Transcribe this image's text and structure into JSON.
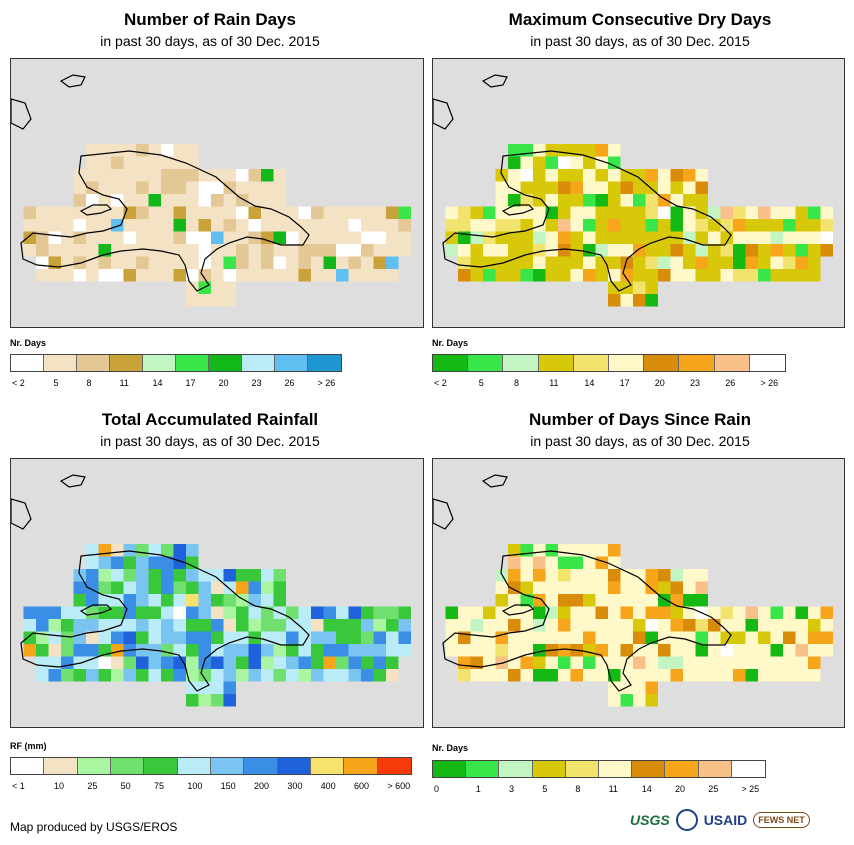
{
  "panels": {
    "rain_days": {
      "title": "Number of Rain Days",
      "subtitle": "in past 30 days, as of 30 Dec. 2015",
      "legend_title": "Nr. Days",
      "legend_colors": [
        "#ffffff",
        "#f3e2c4",
        "#e3c795",
        "#c9a23a",
        "#c3f5c3",
        "#39e64a",
        "#12b81a",
        "#b9ecf7",
        "#60bff0",
        "#1d96d2"
      ],
      "legend_labels": [
        "< 2",
        "5",
        "8",
        "11",
        "14",
        "17",
        "20",
        "23",
        "26",
        "> 26"
      ]
    },
    "dry_days": {
      "title": "Maximum Consecutive Dry Days",
      "subtitle": "in past 30 days, as of 30 Dec. 2015",
      "legend_title": "Nr. Days",
      "legend_colors": [
        "#14b914",
        "#39e64a",
        "#c3f5c3",
        "#d8c80a",
        "#f2e26e",
        "#fff8c8",
        "#d98b0a",
        "#f7a51b",
        "#f9c08a",
        "#ffffff"
      ],
      "legend_labels": [
        "< 2",
        "5",
        "8",
        "11",
        "14",
        "17",
        "20",
        "23",
        "26",
        "> 26"
      ]
    },
    "rainfall": {
      "title": "Total Accumulated Rainfall",
      "subtitle": "in past 30 days, as of 30 Dec. 2015",
      "legend_title": "RF (mm)",
      "legend_colors": [
        "#ffffff",
        "#f3e2c4",
        "#aaf5a0",
        "#6fe070",
        "#39c83c",
        "#b9ecf7",
        "#7ac4f2",
        "#3a8ee6",
        "#1f62dc",
        "#f7e26e",
        "#f7a51b",
        "#f73a0a"
      ],
      "legend_labels": [
        "< 1",
        "10",
        "25",
        "50",
        "75",
        "100",
        "150",
        "200",
        "300",
        "400",
        "600",
        "> 600"
      ]
    },
    "since_rain": {
      "title": "Number of Days Since Rain",
      "subtitle": "in past 30 days, as of 30 Dec. 2015",
      "legend_title": "Nr. Days",
      "legend_colors": [
        "#14b914",
        "#39e64a",
        "#c3f5c3",
        "#d8c80a",
        "#f2e26e",
        "#fff8c8",
        "#d98b0a",
        "#f7a51b",
        "#f9c08a",
        "#ffffff"
      ],
      "legend_labels": [
        "0",
        "1",
        "3",
        "5",
        "8",
        "11",
        "14",
        "20",
        "25",
        "> 25"
      ]
    }
  },
  "credit": "Map produced by USGS/EROS",
  "logos": {
    "usgs": "USGS",
    "usaid": "USAID",
    "fews": "FEWS NET"
  }
}
